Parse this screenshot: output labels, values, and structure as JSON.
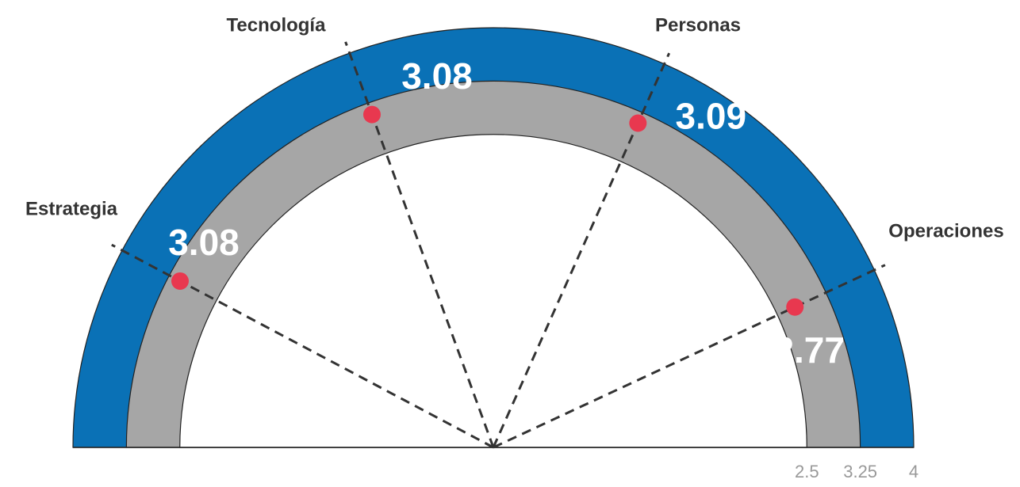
{
  "chart_data": {
    "type": "radial-gauge",
    "radial_range": [
      1.25,
      4
    ],
    "bands": [
      {
        "from": 1.25,
        "to": 2.5,
        "color": "#ffffff"
      },
      {
        "from": 2.5,
        "to": 3.25,
        "color": "#a6a6a6"
      },
      {
        "from": 3.25,
        "to": 4,
        "color": "#0a71b6"
      }
    ],
    "ticks": [
      "2.5",
      "3.25",
      "4"
    ],
    "tick_values": [
      2.5,
      3.25,
      4
    ],
    "categories": [
      {
        "name": "Estrategia",
        "value": 3.08,
        "label": "3.08"
      },
      {
        "name": "Tecnología",
        "value": 3.08,
        "label": "3.08"
      },
      {
        "name": "Personas",
        "value": 3.09,
        "label": "3.09"
      },
      {
        "name": "Operaciones",
        "value": 2.77,
        "label": "2.77"
      }
    ]
  },
  "colors": {
    "outer_band": "#0a71b6",
    "middle_band": "#a6a6a6",
    "inner_band": "#ffffff",
    "marker": "#e8384f",
    "guide": "#333333"
  }
}
